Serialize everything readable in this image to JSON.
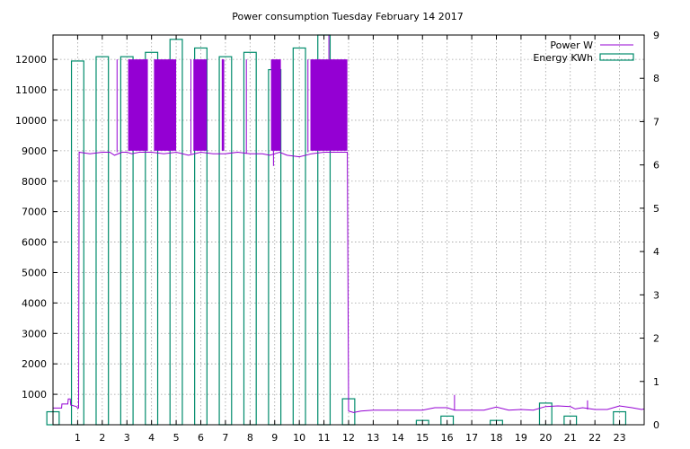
{
  "chart_data": {
    "type": "bar",
    "title": "Power consumption Tuesday February 14 2017",
    "x_tick_labels": [
      "1",
      "2",
      "3",
      "4",
      "5",
      "6",
      "7",
      "8",
      "9",
      "10",
      "11",
      "12",
      "13",
      "14",
      "15",
      "16",
      "17",
      "18",
      "19",
      "20",
      "21",
      "22",
      "23"
    ],
    "xlim": [
      0,
      24
    ],
    "y_left": {
      "lim": [
        0,
        12800
      ],
      "ticks": [
        1000,
        2000,
        3000,
        4000,
        5000,
        6000,
        7000,
        8000,
        9000,
        10000,
        11000,
        12000
      ]
    },
    "y_right": {
      "lim": [
        0,
        9
      ],
      "ticks": [
        0,
        1,
        2,
        3,
        4,
        5,
        6,
        7,
        8,
        9
      ]
    },
    "grid": true,
    "legend_position": "top-right",
    "series": [
      {
        "name": "Power W",
        "type": "line",
        "axis": "left",
        "color": "#9400d3",
        "points": [
          [
            0.0,
            550
          ],
          [
            0.35,
            550
          ],
          [
            0.36,
            680
          ],
          [
            0.6,
            680
          ],
          [
            0.62,
            850
          ],
          [
            0.7,
            850
          ],
          [
            0.72,
            650
          ],
          [
            0.95,
            600
          ],
          [
            1.0,
            550
          ],
          [
            1.04,
            550
          ],
          [
            1.06,
            8950
          ],
          [
            1.5,
            8900
          ],
          [
            2.0,
            8950
          ],
          [
            2.3,
            8950
          ],
          [
            2.5,
            8850
          ],
          [
            2.8,
            8950
          ],
          [
            3.0,
            8950
          ],
          [
            3.2,
            8900
          ],
          [
            3.5,
            8950
          ],
          [
            4.0,
            8950
          ],
          [
            4.5,
            8900
          ],
          [
            5.0,
            8950
          ],
          [
            5.5,
            8850
          ],
          [
            6.0,
            8950
          ],
          [
            6.5,
            8900
          ],
          [
            7.0,
            8900
          ],
          [
            7.5,
            8950
          ],
          [
            8.0,
            8900
          ],
          [
            8.5,
            8900
          ],
          [
            8.8,
            8850
          ],
          [
            9.0,
            8900
          ],
          [
            9.2,
            8950
          ],
          [
            9.5,
            8850
          ],
          [
            10.0,
            8800
          ],
          [
            10.5,
            8900
          ],
          [
            11.0,
            8950
          ],
          [
            11.5,
            8950
          ],
          [
            11.9,
            8950
          ],
          [
            11.95,
            8950
          ],
          [
            12.0,
            450
          ],
          [
            12.2,
            400
          ],
          [
            12.5,
            450
          ],
          [
            13.0,
            480
          ],
          [
            14.0,
            480
          ],
          [
            14.5,
            480
          ],
          [
            15.0,
            480
          ],
          [
            15.5,
            560
          ],
          [
            16.0,
            560
          ],
          [
            16.3,
            480
          ],
          [
            16.6,
            480
          ],
          [
            17.0,
            480
          ],
          [
            17.5,
            480
          ],
          [
            18.0,
            580
          ],
          [
            18.5,
            480
          ],
          [
            19.0,
            500
          ],
          [
            19.5,
            480
          ],
          [
            20.0,
            600
          ],
          [
            20.5,
            620
          ],
          [
            21.0,
            600
          ],
          [
            21.2,
            520
          ],
          [
            21.5,
            560
          ],
          [
            22.0,
            500
          ],
          [
            22.5,
            500
          ],
          [
            23.0,
            620
          ],
          [
            23.5,
            560
          ],
          [
            23.9,
            500
          ],
          [
            24.0,
            520
          ]
        ],
        "dense_regions": [
          {
            "x_start": 3.05,
            "x_end": 3.85,
            "y_low": 9000,
            "y_high": 12000
          },
          {
            "x_start": 4.1,
            "x_end": 5.0,
            "y_low": 9000,
            "y_high": 12000
          },
          {
            "x_start": 5.7,
            "x_end": 6.25,
            "y_low": 9000,
            "y_high": 12000
          },
          {
            "x_start": 6.85,
            "x_end": 6.95,
            "y_low": 9000,
            "y_high": 12000
          },
          {
            "x_start": 8.85,
            "x_end": 9.25,
            "y_low": 9000,
            "y_high": 12000
          },
          {
            "x_start": 10.45,
            "x_end": 11.95,
            "y_low": 9000,
            "y_high": 12000
          }
        ],
        "spikes": [
          {
            "x": 2.6,
            "y_low": 8950,
            "y_high": 12000
          },
          {
            "x": 5.6,
            "y_low": 8900,
            "y_high": 12000
          },
          {
            "x": 7.85,
            "y_low": 8900,
            "y_high": 12000
          },
          {
            "x": 8.95,
            "y_low": 8500,
            "y_high": 9000
          },
          {
            "x": 10.35,
            "y_low": 8950,
            "y_high": 12000
          },
          {
            "x": 11.2,
            "y_low": 12000,
            "y_high": 12800
          },
          {
            "x": 16.3,
            "y_low": 480,
            "y_high": 980
          },
          {
            "x": 21.7,
            "y_low": 500,
            "y_high": 800
          }
        ]
      },
      {
        "name": "Energy KWh",
        "type": "bar",
        "axis": "right",
        "color": "#008b6b",
        "bars": [
          {
            "x": 0,
            "value": 0.3
          },
          {
            "x": 1,
            "value": 8.4
          },
          {
            "x": 2,
            "value": 8.5
          },
          {
            "x": 3,
            "value": 8.5
          },
          {
            "x": 4,
            "value": 8.6
          },
          {
            "x": 5,
            "value": 8.9
          },
          {
            "x": 6,
            "value": 8.7
          },
          {
            "x": 7,
            "value": 8.5
          },
          {
            "x": 8,
            "value": 8.6
          },
          {
            "x": 9,
            "value": 8.2
          },
          {
            "x": 10,
            "value": 8.7
          },
          {
            "x": 11,
            "value": 9.0
          },
          {
            "x": 12,
            "value": 0.6
          },
          {
            "x": 13,
            "value": 0.0
          },
          {
            "x": 14,
            "value": 0.0
          },
          {
            "x": 15,
            "value": 0.1
          },
          {
            "x": 16,
            "value": 0.2
          },
          {
            "x": 17,
            "value": 0.0
          },
          {
            "x": 18,
            "value": 0.1
          },
          {
            "x": 19,
            "value": 0.0
          },
          {
            "x": 20,
            "value": 0.5
          },
          {
            "x": 21,
            "value": 0.2
          },
          {
            "x": 22,
            "value": 0.0
          },
          {
            "x": 23,
            "value": 0.3
          }
        ]
      }
    ]
  }
}
